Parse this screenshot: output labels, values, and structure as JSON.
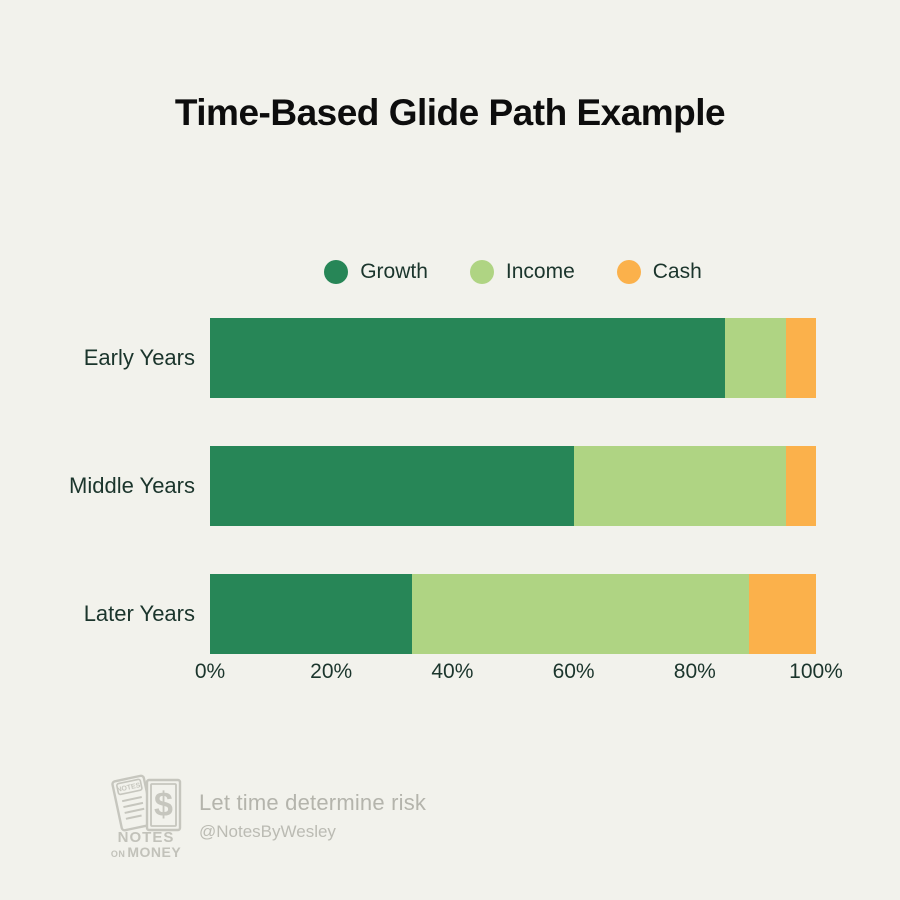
{
  "title": "Time-Based Glide Path Example",
  "colors": {
    "background": "#F2F2EC",
    "title_text": "#0D0D0D",
    "label_text": "#1B352C",
    "growth": "#278657",
    "income": "#AFD483",
    "cash": "#FBB14B",
    "footer_gray": "#BDBDB5"
  },
  "chart_data": {
    "type": "bar",
    "orientation": "horizontal",
    "stacked": true,
    "units": "percent",
    "title": "Time-Based Glide Path Example",
    "categories": [
      "Early Years",
      "Middle Years",
      "Later Years"
    ],
    "series": [
      {
        "name": "Growth",
        "color": "#278657",
        "values": [
          85,
          60,
          33.3
        ]
      },
      {
        "name": "Income",
        "color": "#AFD483",
        "values": [
          10,
          35,
          55.6
        ]
      },
      {
        "name": "Cash",
        "color": "#FBB14B",
        "values": [
          5,
          5,
          11.1
        ]
      }
    ],
    "x_ticks": [
      "0%",
      "20%",
      "40%",
      "60%",
      "80%",
      "100%"
    ],
    "xlim": [
      0,
      100
    ],
    "grid": false,
    "legend_position": "top-center"
  },
  "footer": {
    "logo": {
      "card_label": "NOTES",
      "dollar": "$",
      "word1": "NOTES",
      "word2_small": "ON",
      "word2": "MONEY"
    },
    "tagline": "Let time determine risk",
    "handle": "@NotesByWesley"
  }
}
